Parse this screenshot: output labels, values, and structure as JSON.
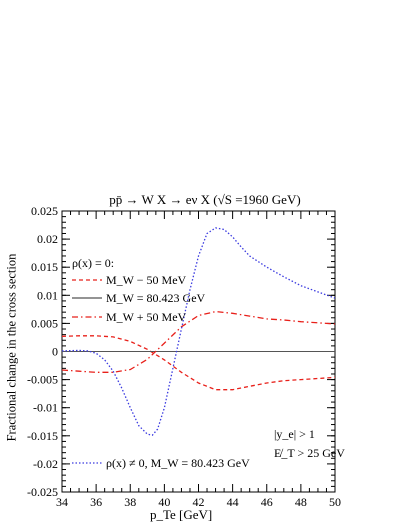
{
  "chart_data": {
    "type": "line",
    "title": "pp̄ → W X → eν X  (√S =1960 GeV)",
    "xlabel": "p_Te  [GeV]",
    "ylabel": "Fractional change in the cross section",
    "xlim": [
      34,
      50
    ],
    "ylim": [
      -0.025,
      0.025
    ],
    "x_ticks": [
      "34",
      "36",
      "38",
      "40",
      "42",
      "44",
      "46",
      "48",
      "50"
    ],
    "y_ticks": [
      "0.025",
      "0.02",
      "0.015",
      "0.01",
      "0.005",
      "0",
      "-0.005",
      "-0.01",
      "-0.015",
      "-0.02",
      "-0.025"
    ],
    "legend_header": "ρ(x) = 0:",
    "annotations": [
      "|y_e| > 1",
      "E̸_T > 25 GeV"
    ],
    "series": [
      {
        "name": "M_W − 50 MeV",
        "color": "#e8201a",
        "style": "dashed",
        "x": [
          34,
          35,
          36,
          37,
          38,
          39,
          40,
          41,
          42,
          43,
          44,
          45,
          46,
          47,
          48,
          49,
          50
        ],
        "y": [
          0.0027,
          0.0028,
          0.0028,
          0.0026,
          0.0018,
          0.0004,
          -0.0015,
          -0.0037,
          -0.0056,
          -0.0068,
          -0.0068,
          -0.0062,
          -0.0056,
          -0.0052,
          -0.005,
          -0.0048,
          -0.0046
        ]
      },
      {
        "name": "M_W = 80.423 GeV",
        "color": "#555555",
        "style": "solid",
        "x": [
          34,
          50
        ],
        "y": [
          0,
          0
        ]
      },
      {
        "name": "M_W + 50 MeV",
        "color": "#e8201a",
        "style": "dashdot",
        "x": [
          34,
          35,
          36,
          37,
          38,
          39,
          40,
          41,
          42,
          43,
          44,
          45,
          46,
          47,
          48,
          49,
          50
        ],
        "y": [
          -0.0033,
          -0.0035,
          -0.0037,
          -0.0037,
          -0.0032,
          -0.0014,
          0.0015,
          0.0044,
          0.0064,
          0.0071,
          0.0068,
          0.0063,
          0.0058,
          0.0056,
          0.0053,
          0.0051,
          0.0049
        ]
      },
      {
        "name": "ρ(x) ≠ 0, M_W = 80.423 GeV",
        "color": "#3a3ae0",
        "style": "dotted",
        "x": [
          34,
          35,
          35.5,
          36,
          36.5,
          37,
          37.5,
          38,
          38.5,
          39,
          39.3,
          39.6,
          40,
          40.5,
          41,
          41.5,
          42,
          42.5,
          43,
          43.5,
          44,
          44.5,
          45,
          46,
          47,
          48,
          49,
          50
        ],
        "y": [
          0.0001,
          0.0002,
          0.0001,
          -0.0003,
          -0.0015,
          -0.0035,
          -0.0065,
          -0.01,
          -0.0132,
          -0.0147,
          -0.0149,
          -0.0138,
          -0.01,
          -0.003,
          0.004,
          0.011,
          0.017,
          0.021,
          0.022,
          0.0217,
          0.0204,
          0.0186,
          0.017,
          0.015,
          0.0133,
          0.0117,
          0.0106,
          0.0095
        ]
      }
    ]
  }
}
